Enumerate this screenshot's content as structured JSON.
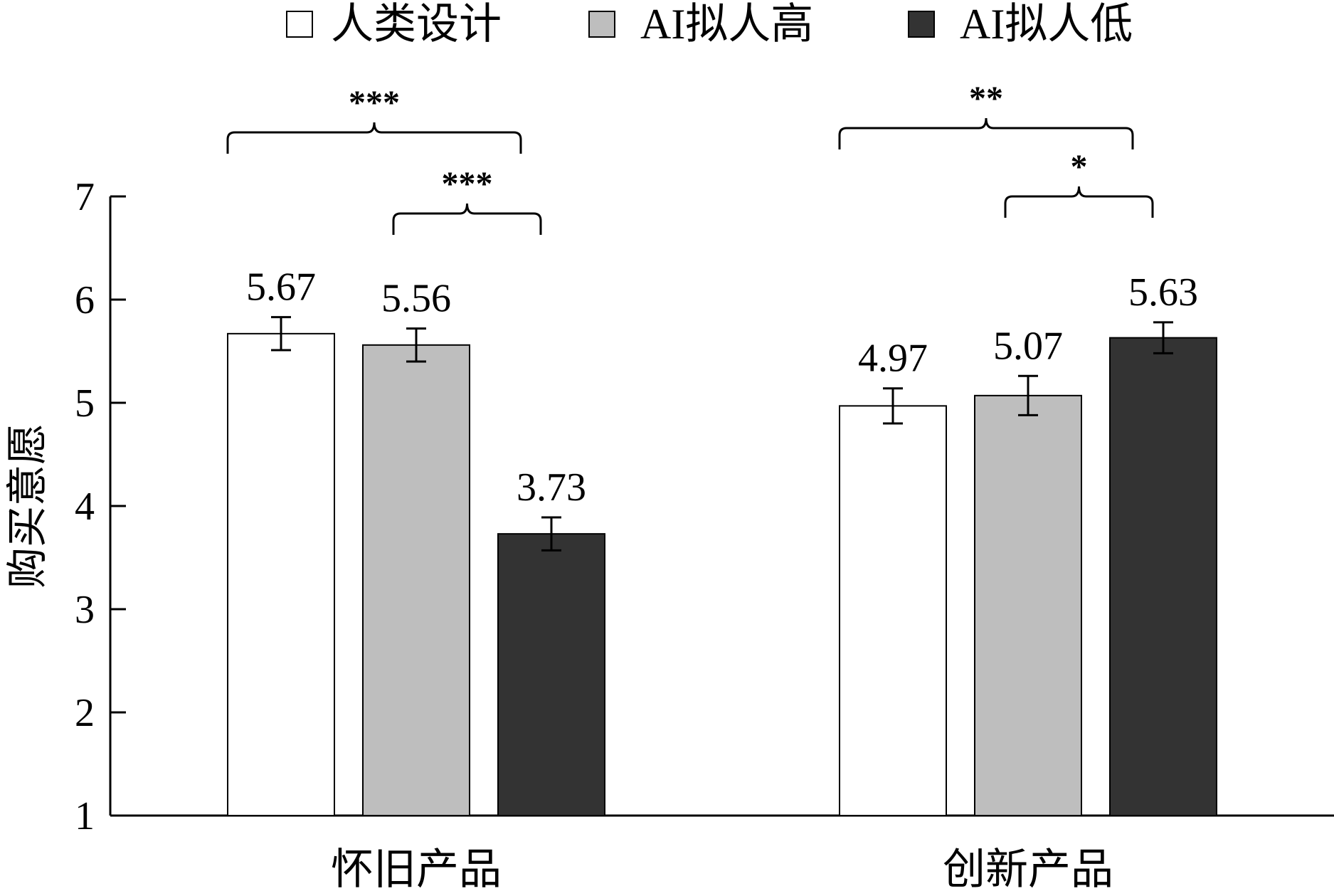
{
  "chart_data": {
    "type": "bar",
    "categories": [
      "怀旧产品",
      "创新产品"
    ],
    "series": [
      {
        "name": "人类设计",
        "color": "#ffffff",
        "values": [
          5.67,
          4.97
        ],
        "errors": [
          0.16,
          0.17
        ]
      },
      {
        "name": "AI拟人高",
        "color": "#bebebe",
        "values": [
          5.56,
          5.07
        ],
        "errors": [
          0.16,
          0.19
        ]
      },
      {
        "name": "AI拟人低",
        "color": "#333333",
        "values": [
          3.73,
          5.63
        ],
        "errors": [
          0.16,
          0.15
        ]
      }
    ],
    "value_labels": [
      [
        "5.67",
        "4.97"
      ],
      [
        "5.56",
        "5.07"
      ],
      [
        "3.73",
        "5.63"
      ]
    ],
    "ylabel": "购买意愿",
    "xlabel": "",
    "ylim": [
      1,
      7
    ],
    "yticks": [
      "1",
      "2",
      "3",
      "4",
      "5",
      "6",
      "7"
    ],
    "legend_position": "top",
    "grid": false,
    "significance": [
      {
        "category": 0,
        "from_series": 0,
        "to_series": 2,
        "label": "***"
      },
      {
        "category": 0,
        "from_series": 1,
        "to_series": 2,
        "label": "***"
      },
      {
        "category": 1,
        "from_series": 0,
        "to_series": 2,
        "label": "**"
      },
      {
        "category": 1,
        "from_series": 1,
        "to_series": 2,
        "label": "*"
      }
    ]
  }
}
